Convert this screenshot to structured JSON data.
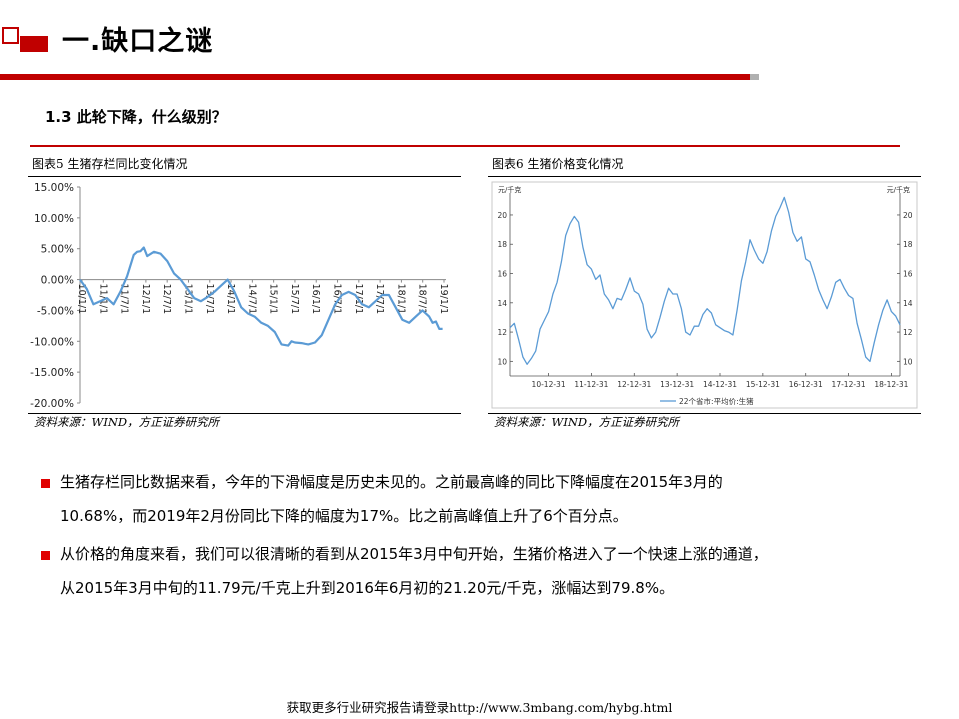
{
  "header": {
    "title": "一.缺口之谜",
    "subtitle": "1.3 此轮下降，什么级别？"
  },
  "figure5": {
    "caption": "图表5  生猪存栏同比变化情况",
    "source": "资料来源：WIND，方正证券研究所"
  },
  "figure6": {
    "caption": "图表6  生猪价格变化情况",
    "source": "资料来源：WIND，方正证券研究所"
  },
  "chart_data": [
    {
      "type": "line",
      "ylim": [
        -0.2,
        0.15
      ],
      "ytick_values": [
        -0.2,
        -0.15,
        -0.1,
        -0.05,
        0.0,
        0.05,
        0.1,
        0.15
      ],
      "ytick_labels": [
        "-20.00%",
        "-15.00%",
        "-10.00%",
        "-5.00%",
        "0.00%",
        "5.00%",
        "10.00%",
        "15.00%"
      ],
      "xtick_labels": [
        "10/1/1",
        "11/1/1",
        "11/7/1",
        "12/1/1",
        "12/7/1",
        "13/1/1",
        "13/7/1",
        "14/1/1",
        "14/7/1",
        "15/1/1",
        "15/7/1",
        "16/1/1",
        "16/7/1",
        "17/1/1",
        "17/7/1",
        "18/1/1",
        "18/7/1",
        "19/1/1"
      ],
      "xlim": [
        0,
        109
      ],
      "grid": false,
      "color": "#5b9bd5",
      "series": [
        {
          "x": [
            0,
            2,
            4,
            6,
            8,
            10,
            12,
            14,
            16,
            17,
            18,
            19,
            20,
            22,
            24,
            26,
            28,
            30,
            32,
            34,
            36,
            38,
            40,
            42,
            44,
            46,
            48,
            50,
            52,
            54,
            56,
            58,
            60,
            62,
            63,
            64,
            66,
            67,
            68,
            70,
            72,
            74,
            76,
            78,
            80,
            82,
            84,
            86,
            88,
            90,
            92,
            94,
            96,
            98,
            100,
            102,
            104,
            105,
            106,
            107,
            108
          ],
          "y": [
            0.0,
            -0.015,
            -0.04,
            -0.035,
            -0.03,
            -0.04,
            -0.02,
            0.005,
            0.04,
            0.045,
            0.046,
            0.052,
            0.038,
            0.045,
            0.042,
            0.03,
            0.01,
            0.0,
            -0.015,
            -0.03,
            -0.035,
            -0.028,
            -0.02,
            -0.01,
            0.0,
            -0.02,
            -0.045,
            -0.055,
            -0.06,
            -0.07,
            -0.075,
            -0.085,
            -0.105,
            -0.107,
            -0.1,
            -0.102,
            -0.103,
            -0.104,
            -0.105,
            -0.102,
            -0.09,
            -0.065,
            -0.04,
            -0.025,
            -0.02,
            -0.025,
            -0.04,
            -0.045,
            -0.035,
            -0.025,
            -0.025,
            -0.045,
            -0.065,
            -0.07,
            -0.06,
            -0.05,
            -0.06,
            -0.07,
            -0.068,
            -0.08,
            -0.08
          ]
        }
      ]
    },
    {
      "type": "line",
      "ylim": [
        9,
        21.5
      ],
      "left_unit": "元/千克",
      "right_unit": "元/千克",
      "ytick_values": [
        10,
        12,
        14,
        16,
        18,
        20
      ],
      "ytick_labels": [
        "10",
        "12",
        "14",
        "16",
        "18",
        "20"
      ],
      "xtick_labels": [
        "10-12-31",
        "11-12-31",
        "12-12-31",
        "13-12-31",
        "14-12-31",
        "15-12-31",
        "16-12-31",
        "17-12-31",
        "18-12-31"
      ],
      "grid": false,
      "legend": {
        "label": "22个省市:平均价:生猪",
        "position": "bottom"
      },
      "color": "#5b9bd5",
      "series": [
        {
          "name": "22个省市:平均价:生猪",
          "x": [
            2010.0,
            2010.1,
            2010.2,
            2010.3,
            2010.4,
            2010.5,
            2010.6,
            2010.7,
            2010.8,
            2010.9,
            2011.0,
            2011.1,
            2011.2,
            2011.3,
            2011.4,
            2011.5,
            2011.6,
            2011.7,
            2011.8,
            2011.9,
            2012.0,
            2012.1,
            2012.2,
            2012.3,
            2012.4,
            2012.5,
            2012.6,
            2012.7,
            2012.8,
            2012.9,
            2013.0,
            2013.1,
            2013.2,
            2013.3,
            2013.4,
            2013.5,
            2013.6,
            2013.7,
            2013.8,
            2013.9,
            2014.0,
            2014.1,
            2014.2,
            2014.3,
            2014.4,
            2014.5,
            2014.6,
            2014.7,
            2014.8,
            2014.9,
            2015.0,
            2015.1,
            2015.2,
            2015.3,
            2015.4,
            2015.5,
            2015.6,
            2015.7,
            2015.8,
            2015.9,
            2016.0,
            2016.1,
            2016.2,
            2016.3,
            2016.4,
            2016.5,
            2016.6,
            2016.7,
            2016.8,
            2016.9,
            2017.0,
            2017.1,
            2017.2,
            2017.3,
            2017.4,
            2017.5,
            2017.6,
            2017.7,
            2017.8,
            2017.9,
            2018.0,
            2018.1,
            2018.2,
            2018.3,
            2018.4,
            2018.5,
            2018.6,
            2018.7,
            2018.8,
            2018.9,
            2019.0,
            2019.1
          ],
          "y": [
            12.3,
            12.6,
            11.5,
            10.3,
            9.8,
            10.2,
            10.7,
            12.2,
            12.8,
            13.4,
            14.6,
            15.4,
            16.8,
            18.6,
            19.4,
            19.9,
            19.5,
            17.8,
            16.6,
            16.3,
            15.6,
            15.9,
            14.6,
            14.2,
            13.6,
            14.3,
            14.2,
            14.9,
            15.7,
            14.8,
            14.6,
            13.9,
            12.2,
            11.6,
            12.0,
            13.0,
            14.1,
            15.0,
            14.6,
            14.6,
            13.6,
            12.0,
            11.8,
            12.4,
            12.4,
            13.2,
            13.6,
            13.3,
            12.5,
            12.3,
            12.1,
            12.0,
            11.8,
            13.5,
            15.5,
            16.8,
            18.3,
            17.6,
            17.0,
            16.7,
            17.5,
            18.9,
            19.9,
            20.5,
            21.2,
            20.2,
            18.8,
            18.2,
            18.5,
            17.0,
            16.8,
            15.9,
            14.9,
            14.2,
            13.6,
            14.4,
            15.4,
            15.6,
            15.0,
            14.5,
            14.3,
            12.6,
            11.5,
            10.3,
            10.0,
            11.3,
            12.5,
            13.5,
            14.2,
            13.4,
            13.1,
            12.5
          ]
        }
      ]
    }
  ],
  "body": {
    "para1": {
      "line1": "生猪存栏同比数据来看，今年的下滑幅度是历史未见的。之前最高峰的同比下降幅度在2015年3月的",
      "line2": "10.68%，而2019年2月份同比下降的幅度为17%。比之前高峰值上升了6个百分点。"
    },
    "para2": {
      "line1": "从价格的角度来看，我们可以很清晰的看到从2015年3月中旬开始，生猪价格进入了一个快速上涨的通道，",
      "line2": "从2015年3月中旬的11.79元/千克上升到2016年6月初的21.20元/千克，涨幅达到79.8%。"
    }
  },
  "footer": {
    "text": "获取更多行业研究报告请登录http://www.3mbang.com/hybg.html"
  },
  "colors": {
    "accent": "#c00000",
    "line": "#5b9bd5",
    "bullet": "#e00000"
  }
}
